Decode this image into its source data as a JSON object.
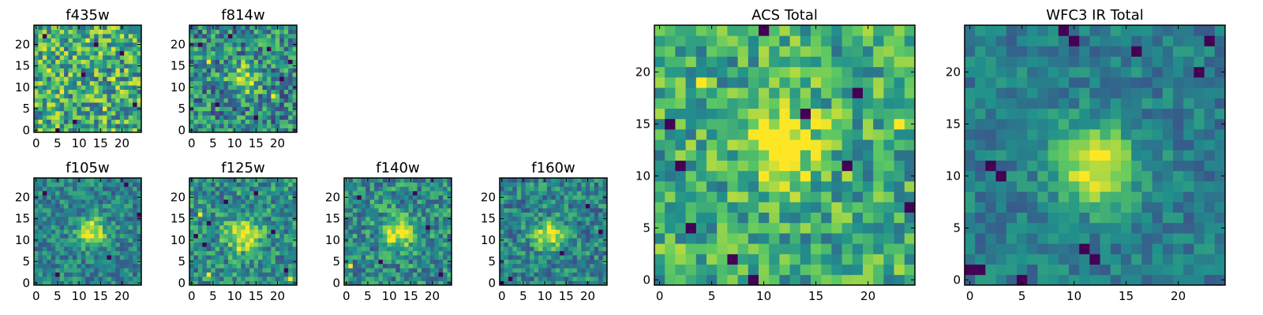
{
  "colormap": "viridis",
  "colormap_stops": [
    "#440154",
    "#3b528b",
    "#21918c",
    "#5ec962",
    "#fde725"
  ],
  "chart_data": [
    {
      "type": "heatmap",
      "title": "f435w",
      "shape": [
        25,
        25
      ],
      "xlim": [
        0,
        24
      ],
      "ylim": [
        0,
        24
      ],
      "xticks": [
        0,
        5,
        10,
        15,
        20
      ],
      "yticks": [
        0,
        5,
        10,
        15,
        20
      ],
      "source_center": null,
      "noise": 0.34,
      "dark_pixels": [
        [
          2,
          22
        ],
        [
          14,
          20
        ],
        [
          20,
          18
        ],
        [
          11,
          13
        ],
        [
          9,
          2
        ],
        [
          5,
          0
        ],
        [
          23,
          6
        ]
      ],
      "bright_pixels": [
        [
          3,
          14
        ],
        [
          6,
          9
        ],
        [
          16,
          5
        ],
        [
          12,
          21
        ],
        [
          18,
          12
        ]
      ],
      "base": 0.62
    },
    {
      "type": "heatmap",
      "title": "f814w",
      "shape": [
        25,
        25
      ],
      "xlim": [
        0,
        24
      ],
      "ylim": [
        0,
        24
      ],
      "xticks": [
        0,
        5,
        10,
        15,
        20
      ],
      "yticks": [
        0,
        5,
        10,
        15,
        20
      ],
      "source_center": [
        12,
        12
      ],
      "source_sigma": 2.4,
      "source_amp": 0.45,
      "noise": 0.3,
      "dark_pixels": [
        [
          2,
          20
        ],
        [
          18,
          19
        ],
        [
          21,
          12
        ],
        [
          6,
          6
        ],
        [
          15,
          3
        ],
        [
          23,
          16
        ],
        [
          9,
          22
        ]
      ],
      "bright_pixels": [
        [
          4,
          16
        ],
        [
          19,
          8
        ]
      ],
      "base": 0.48
    },
    {
      "type": "heatmap",
      "title": "f105w",
      "shape": [
        25,
        25
      ],
      "xlim": [
        0,
        24
      ],
      "ylim": [
        0,
        24
      ],
      "xticks": [
        0,
        5,
        10,
        15,
        20
      ],
      "yticks": [
        0,
        5,
        10,
        15,
        20
      ],
      "source_center": [
        13,
        12
      ],
      "source_sigma": 2.2,
      "source_amp": 0.55,
      "noise": 0.2,
      "dark_pixels": [
        [
          21,
          23
        ],
        [
          24,
          16
        ],
        [
          5,
          2
        ],
        [
          17,
          6
        ],
        [
          2,
          21
        ]
      ],
      "bright_pixels": [],
      "base": 0.45
    },
    {
      "type": "heatmap",
      "title": "f125w",
      "shape": [
        25,
        25
      ],
      "xlim": [
        0,
        24
      ],
      "ylim": [
        0,
        24
      ],
      "xticks": [
        0,
        5,
        10,
        15,
        20
      ],
      "yticks": [
        0,
        5,
        10,
        15,
        20
      ],
      "source_center": [
        12,
        11
      ],
      "source_sigma": 2.8,
      "source_amp": 0.45,
      "noise": 0.24,
      "dark_pixels": [
        [
          1,
          11
        ],
        [
          3,
          9
        ],
        [
          4,
          14
        ],
        [
          8,
          19
        ],
        [
          15,
          21
        ],
        [
          19,
          12
        ],
        [
          22,
          3
        ]
      ],
      "bright_pixels": [
        [
          2,
          16
        ],
        [
          4,
          2
        ],
        [
          23,
          1
        ],
        [
          11,
          8
        ]
      ],
      "base": 0.5
    },
    {
      "type": "heatmap",
      "title": "f140w",
      "shape": [
        25,
        25
      ],
      "xlim": [
        0,
        24
      ],
      "ylim": [
        0,
        24
      ],
      "xticks": [
        0,
        5,
        10,
        15,
        20
      ],
      "yticks": [
        0,
        5,
        10,
        15,
        20
      ],
      "source_center": [
        12,
        12
      ],
      "source_sigma": 2.6,
      "source_amp": 0.5,
      "noise": 0.25,
      "dark_pixels": [
        [
          3,
          20
        ],
        [
          16,
          21
        ],
        [
          22,
          2
        ],
        [
          8,
          5
        ],
        [
          19,
          13
        ]
      ],
      "bright_pixels": [
        [
          1,
          4
        ],
        [
          10,
          10
        ],
        [
          14,
          12
        ]
      ],
      "base": 0.48
    },
    {
      "type": "heatmap",
      "title": "f160w",
      "shape": [
        25,
        25
      ],
      "xlim": [
        0,
        24
      ],
      "ylim": [
        0,
        24
      ],
      "xticks": [
        0,
        5,
        10,
        15,
        20
      ],
      "yticks": [
        0,
        5,
        10,
        15,
        20
      ],
      "source_center": [
        11,
        11
      ],
      "source_sigma": 2.3,
      "source_amp": 0.55,
      "noise": 0.22,
      "dark_pixels": [
        [
          0,
          0
        ],
        [
          2,
          1
        ],
        [
          14,
          7
        ],
        [
          20,
          18
        ],
        [
          23,
          12
        ]
      ],
      "bright_pixels": [],
      "base": 0.45
    },
    {
      "type": "heatmap",
      "title": "ACS Total",
      "shape": [
        25,
        25
      ],
      "xlim": [
        0,
        24
      ],
      "ylim": [
        0,
        24
      ],
      "xticks": [
        0,
        5,
        10,
        15,
        20
      ],
      "yticks": [
        0,
        5,
        10,
        15,
        20
      ],
      "source_center": [
        12,
        13
      ],
      "source_sigma": 2.8,
      "source_amp": 0.35,
      "noise": 0.26,
      "dark_pixels": [
        [
          10,
          24
        ],
        [
          14,
          16
        ],
        [
          19,
          18
        ],
        [
          18,
          11
        ],
        [
          24,
          7
        ],
        [
          1,
          15
        ],
        [
          2,
          11
        ],
        [
          9,
          0
        ],
        [
          7,
          2
        ],
        [
          3,
          5
        ]
      ],
      "bright_pixels": [
        [
          4,
          19
        ],
        [
          11,
          12
        ],
        [
          23,
          15
        ]
      ],
      "base": 0.62
    },
    {
      "type": "heatmap",
      "title": "WFC3 IR Total",
      "shape": [
        25,
        25
      ],
      "xlim": [
        0,
        24
      ],
      "ylim": [
        0,
        24
      ],
      "xticks": [
        0,
        5,
        10,
        15,
        20
      ],
      "yticks": [
        0,
        5,
        10,
        15,
        20
      ],
      "source_center": [
        12,
        11
      ],
      "source_sigma": 2.7,
      "source_amp": 0.6,
      "noise": 0.14,
      "dark_pixels": [
        [
          9,
          24
        ],
        [
          10,
          23
        ],
        [
          16,
          22
        ],
        [
          23,
          23
        ],
        [
          22,
          20
        ],
        [
          3,
          10
        ],
        [
          2,
          11
        ],
        [
          12,
          2
        ],
        [
          11,
          3
        ],
        [
          0,
          1
        ],
        [
          1,
          1
        ],
        [
          5,
          0
        ]
      ],
      "bright_pixels": [],
      "base": 0.42
    }
  ]
}
